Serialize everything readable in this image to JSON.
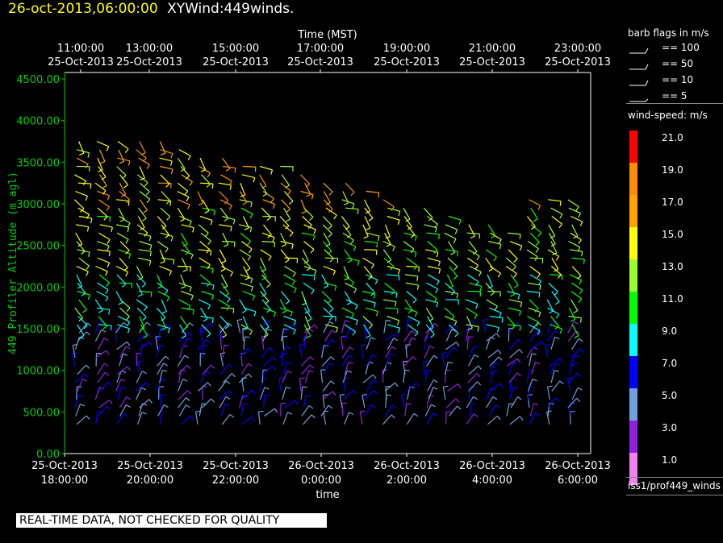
{
  "header": {
    "date": "26-oct-2013,06:00:00",
    "name": "XYWind:449winds."
  },
  "chart_data": {
    "type": "scatter",
    "title": "",
    "top_axis_label": "Time (MST)",
    "top_ticks": [
      {
        "time": "11:00:00",
        "date": "25-Oct-2013"
      },
      {
        "time": "13:00:00",
        "date": "25-Oct-2013"
      },
      {
        "time": "15:00:00",
        "date": "25-Oct-2013"
      },
      {
        "time": "17:00:00",
        "date": "25-Oct-2013"
      },
      {
        "time": "19:00:00",
        "date": "25-Oct-2013"
      },
      {
        "time": "21:00:00",
        "date": "25-Oct-2013"
      },
      {
        "time": "23:00:00",
        "date": "25-Oct-2013"
      }
    ],
    "xlabel": "time",
    "bottom_ticks": [
      {
        "date": "25-Oct-2013",
        "time": "18:00:00"
      },
      {
        "date": "25-Oct-2013",
        "time": "20:00:00"
      },
      {
        "date": "25-Oct-2013",
        "time": "22:00:00"
      },
      {
        "date": "26-Oct-2013",
        "time": "0:00:00"
      },
      {
        "date": "26-Oct-2013",
        "time": "2:00:00"
      },
      {
        "date": "26-Oct-2013",
        "time": "4:00:00"
      },
      {
        "date": "26-Oct-2013",
        "time": "6:00:00"
      }
    ],
    "ylabel": "449 Profiler Altitude (m agl)",
    "y_ticks": [
      "0.00",
      "500.00",
      "1000.00",
      "1500.00",
      "2000.00",
      "2500.00",
      "3000.00",
      "3500.00",
      "4000.00",
      "4500.00"
    ],
    "ylim": [
      0,
      4500
    ],
    "xlim_hours": [
      17.5,
      30.3
    ],
    "series": [
      {
        "name": "winds",
        "x": [
          17.8,
          18.3,
          18.8,
          19.3,
          19.8,
          20.3,
          20.8,
          21.3,
          21.8,
          22.3,
          22.8,
          23.3,
          23.8,
          24.3,
          24.8,
          25.3,
          25.8,
          26.3,
          26.8,
          27.3,
          27.8,
          28.3,
          28.8,
          29.3,
          29.8
        ],
        "y_top": [
          3800,
          3800,
          3800,
          3800,
          3800,
          3700,
          3600,
          3600,
          3500,
          3500,
          3500,
          3400,
          3300,
          3300,
          3200,
          3100,
          3000,
          3000,
          2900,
          2800,
          2800,
          2700,
          3100,
          3100,
          3100
        ],
        "comment_unused": ""
      }
    ]
  },
  "legend": {
    "flags_title": "barb flags in m/s",
    "flags": [
      "== 100",
      "== 50",
      "== 10",
      "== 5"
    ],
    "speed_title": "wind-speed: m/s",
    "speeds": [
      {
        "label": "21.0",
        "color": "#ff0000"
      },
      {
        "label": "19.0",
        "color": "#ff8c00"
      },
      {
        "label": "17.0",
        "color": "#ffa500"
      },
      {
        "label": "15.0",
        "color": "#ffff00"
      },
      {
        "label": "13.0",
        "color": "#9aff32"
      },
      {
        "label": "11.0",
        "color": "#00ff00"
      },
      {
        "label": "9.0",
        "color": "#00ffff"
      },
      {
        "label": "7.0",
        "color": "#0000ff"
      },
      {
        "label": "5.0",
        "color": "#6f9fdf"
      },
      {
        "label": "3.0",
        "color": "#9020e0"
      },
      {
        "label": "1.0",
        "color": "#ee82ee"
      }
    ],
    "source": "iss1/prof449_winds"
  },
  "footer": {
    "quality": "REAL-TIME DATA, NOT CHECKED FOR QUALITY"
  },
  "colors": {
    "axis": "#00cc00",
    "frame": "#ffffff",
    "date": "#ffff00"
  }
}
